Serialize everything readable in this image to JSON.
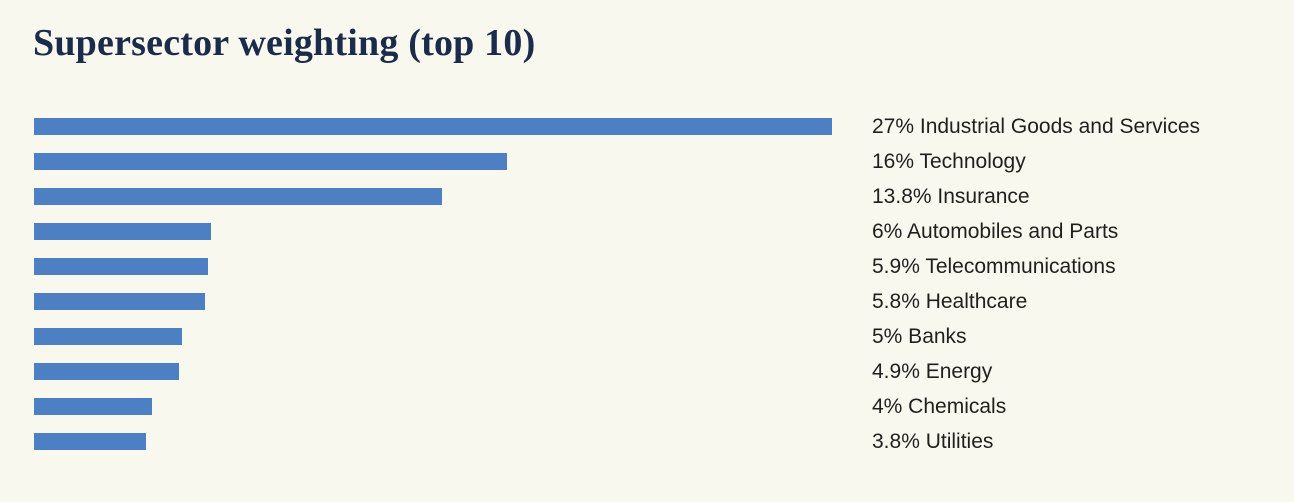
{
  "page": {
    "background_color": "#f9f8ee",
    "title_color": "#1b2b4a",
    "label_color": "#1f1f1f"
  },
  "chart_data": {
    "type": "bar",
    "orientation": "horizontal",
    "title": "Supersector weighting (top 10)",
    "categories": [
      "Industrial Goods and Services",
      "Technology",
      "Insurance",
      "Automobiles and Parts",
      "Telecommunications",
      "Healthcare",
      "Banks",
      "Energy",
      "Chemicals",
      "Utilities"
    ],
    "values": [
      27,
      16,
      13.8,
      6,
      5.9,
      5.8,
      5,
      4.9,
      4,
      3.8
    ],
    "labels": [
      "27% Industrial Goods and Services",
      "16% Technology",
      "13.8% Insurance",
      "6% Automobiles and Parts",
      "5.9% Telecommunications",
      "5.8% Healthcare",
      "5% Banks",
      "4.9% Energy",
      "4% Chemicals",
      "3.8% Utilities"
    ],
    "xlim": [
      0,
      27
    ],
    "grid": false,
    "legend": false,
    "axis_ticks": false,
    "bar_color": "#4d80c2"
  }
}
